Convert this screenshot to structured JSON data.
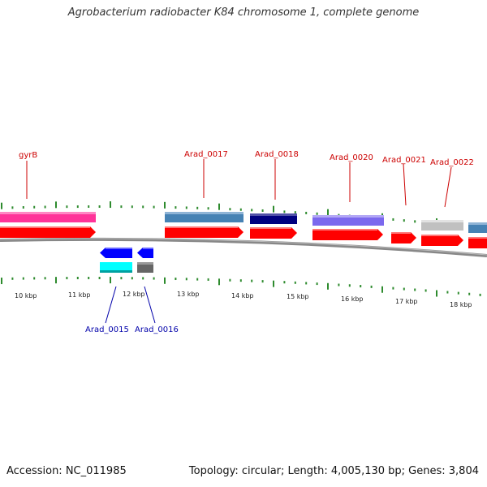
{
  "title": "Agrobacterium radiobacter K84 chromosome 1, complete genome",
  "footer": {
    "accession": "Accession: NC_011985",
    "summary": "Topology: circular; Length: 4,005,130 bp; Genes: 3,804"
  },
  "scale_labels": [
    "10 kbp",
    "11 kbp",
    "12 kbp",
    "13 kbp",
    "14 kbp",
    "15 kbp",
    "16 kbp",
    "17 kbp",
    "18 kbp"
  ],
  "colors": {
    "forward_label": "#cc0000",
    "reverse_label": "#0000aa",
    "cds_red": "#ff0000",
    "backbone": "#888888",
    "tick": "#2e8b2e"
  },
  "forward_genes": [
    {
      "name": "gyrB",
      "color": "#ff3399",
      "labeled": true
    },
    {
      "name": "Arad_0017",
      "color": "#4682b4",
      "labeled": true
    },
    {
      "name": "Arad_0018",
      "color": "#000080",
      "labeled": true
    },
    {
      "name": "Arad_0020",
      "color": "#7b68ee",
      "labeled": true
    },
    {
      "name": "Arad_0021",
      "color": "",
      "labeled": true
    },
    {
      "name": "Arad_0022",
      "color": "#c0c0c0",
      "labeled": true
    },
    {
      "name": "",
      "color": "#4682b4",
      "labeled": false
    }
  ],
  "reverse_genes": [
    {
      "name": "Arad_0015",
      "color": "#00ffff"
    },
    {
      "name": "Arad_0016",
      "color": "#666666"
    }
  ]
}
